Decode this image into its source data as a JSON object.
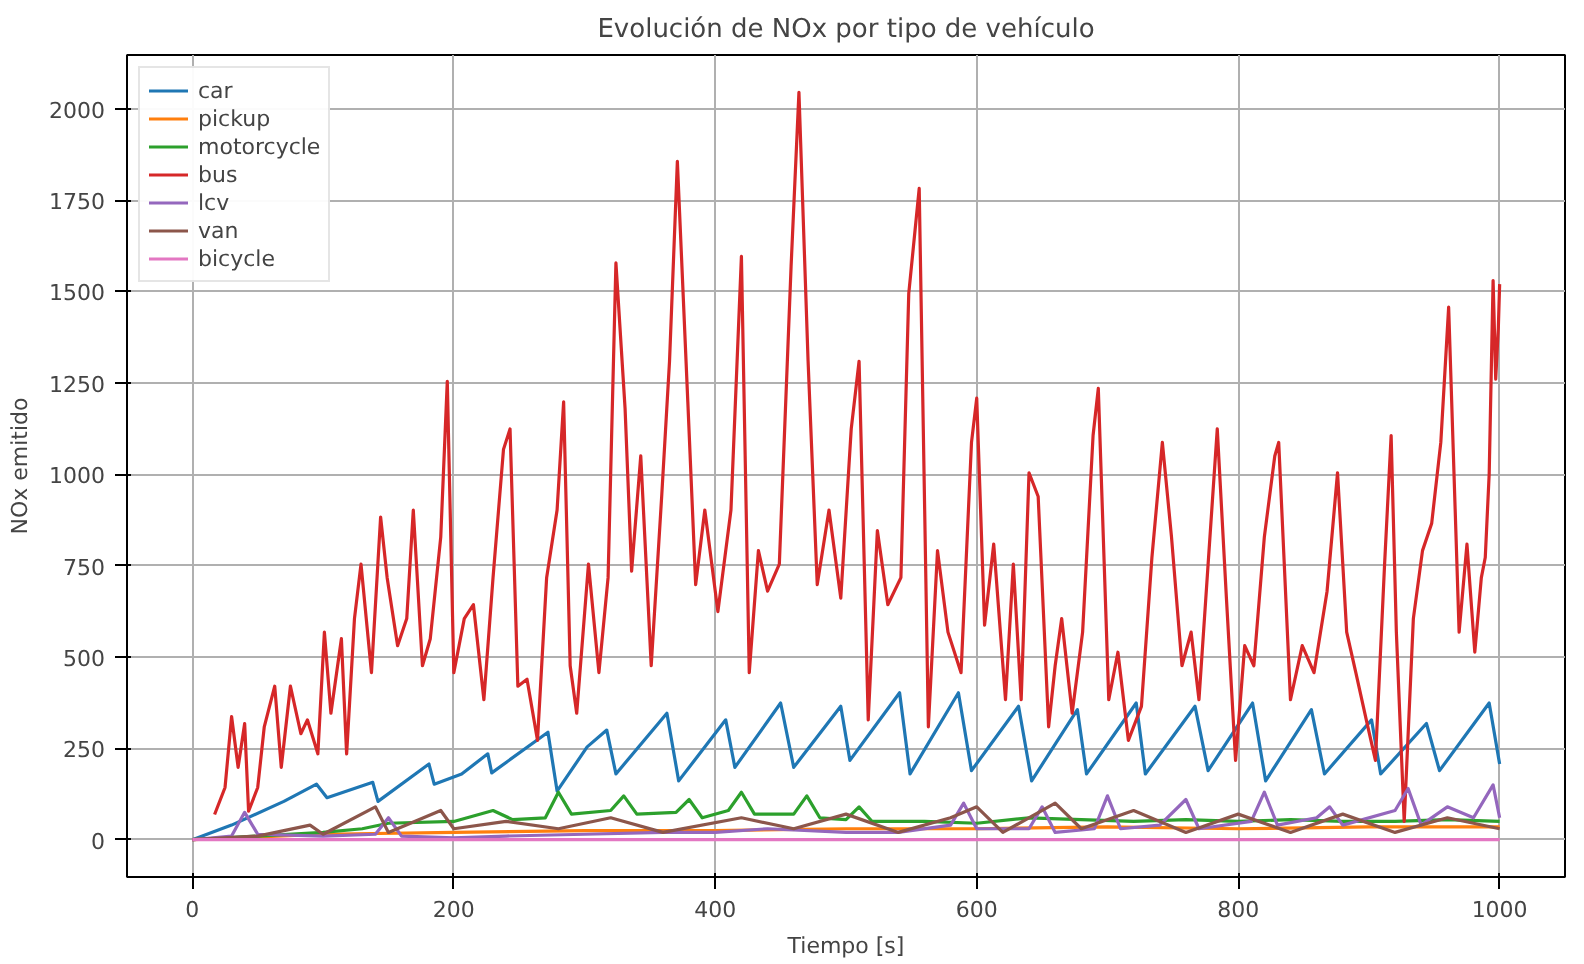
{
  "chart_data": {
    "type": "line",
    "title": "Evolución de NOx por tipo de vehículo",
    "xlabel": "Tiempo [s]",
    "ylabel": "NOx emitido",
    "xlim": [
      -50,
      1050
    ],
    "ylim": [
      -102,
      2147
    ],
    "xticks": [
      0,
      200,
      400,
      600,
      800,
      1000
    ],
    "yticks": [
      0,
      250,
      500,
      750,
      1000,
      1250,
      1500,
      1750,
      2000
    ],
    "grid": true,
    "legend": "top left",
    "line_style": "solid",
    "marker": "none",
    "series": [
      {
        "name": "car",
        "color": "#1f77b4",
        "x": [
          0,
          30,
          70,
          95,
          103,
          138,
          142,
          181,
          185,
          206,
          226,
          229,
          272,
          279,
          302,
          317,
          324,
          363,
          372,
          408,
          415,
          450,
          460,
          496,
          503,
          541,
          549,
          586,
          596,
          632,
          642,
          677,
          684,
          722,
          729,
          767,
          777,
          811,
          821,
          856,
          866,
          902,
          909,
          944,
          954,
          992,
          1000
        ],
        "values": [
          0,
          40,
          105,
          152,
          115,
          157,
          105,
          207,
          152,
          180,
          235,
          183,
          294,
          133,
          254,
          300,
          180,
          346,
          161,
          328,
          198,
          374,
          198,
          365,
          217,
          402,
          180,
          402,
          189,
          365,
          161,
          356,
          180,
          374,
          180,
          365,
          189,
          374,
          161,
          356,
          180,
          328,
          180,
          318,
          189,
          374,
          207
        ]
      },
      {
        "name": "pickup",
        "color": "#ff7f0e",
        "x": [
          0,
          100,
          200,
          300,
          400,
          500,
          600,
          700,
          800,
          900,
          1000
        ],
        "values": [
          0,
          15,
          20,
          25,
          25,
          30,
          30,
          35,
          30,
          35,
          35
        ]
      },
      {
        "name": "motorcycle",
        "color": "#2ca02c",
        "x": [
          0,
          50,
          100,
          130,
          150,
          200,
          230,
          245,
          270,
          280,
          290,
          320,
          330,
          340,
          370,
          380,
          390,
          410,
          420,
          430,
          460,
          470,
          480,
          500,
          510,
          520,
          560,
          600,
          640,
          680,
          720,
          760,
          800,
          840,
          880,
          920,
          960,
          1000
        ],
        "values": [
          0,
          10,
          20,
          30,
          45,
          50,
          80,
          55,
          60,
          130,
          70,
          80,
          120,
          70,
          75,
          110,
          60,
          80,
          130,
          70,
          70,
          120,
          60,
          55,
          90,
          50,
          50,
          45,
          60,
          55,
          50,
          55,
          50,
          55,
          50,
          50,
          55,
          50
        ]
      },
      {
        "name": "bus",
        "color": "#d62728",
        "x": [
          17,
          25,
          30,
          35,
          40,
          43,
          50,
          55,
          63,
          68,
          75,
          83,
          88,
          96,
          101,
          106,
          114,
          118,
          124,
          129,
          137,
          144,
          149,
          157,
          164,
          169,
          176,
          182,
          190,
          195,
          200,
          208,
          215,
          223,
          230,
          238,
          243,
          249,
          256,
          264,
          271,
          279,
          284,
          289,
          294,
          303,
          311,
          318,
          324,
          331,
          336,
          343,
          351,
          359,
          365,
          371,
          379,
          385,
          392,
          402,
          412,
          420,
          426,
          433,
          440,
          449,
          458,
          464,
          471,
          478,
          487,
          496,
          504,
          510,
          517,
          524,
          532,
          542,
          548,
          556,
          563,
          570,
          578,
          588,
          596,
          600,
          606,
          613,
          622,
          628,
          634,
          640,
          647,
          655,
          660,
          665,
          673,
          681,
          689,
          693,
          701,
          708,
          716,
          726,
          734,
          742,
          749,
          757,
          764,
          770,
          777,
          784,
          791,
          798,
          805,
          812,
          820,
          828,
          831,
          840,
          849,
          858,
          868,
          876,
          883,
          890,
          898,
          905,
          912,
          917,
          921,
          927,
          934,
          941,
          948,
          955,
          961,
          969,
          975,
          981,
          986,
          989,
          992,
          995,
          997,
          999,
          1000
        ],
        "values": [
          69,
          143,
          337,
          198,
          318,
          78,
          143,
          309,
          420,
          198,
          420,
          290,
          328,
          235,
          568,
          346,
          550,
          235,
          605,
          754,
          457,
          883,
          717,
          531,
          605,
          902,
          476,
          550,
          828,
          1254,
          457,
          605,
          643,
          383,
          717,
          1068,
          1124,
          420,
          439,
          272,
          717,
          902,
          1198,
          476,
          346,
          754,
          457,
          717,
          1578,
          1180,
          735,
          1050,
          476,
          939,
          1309,
          1856,
          1198,
          698,
          902,
          624,
          902,
          1596,
          457,
          791,
          680,
          754,
          1569,
          2045,
          1309,
          698,
          902,
          661,
          1124,
          1309,
          328,
          846,
          643,
          717,
          1494,
          1782,
          309,
          791,
          568,
          457,
          1087,
          1208,
          587,
          809,
          383,
          754,
          383,
          1004,
          939,
          309,
          476,
          605,
          346,
          568,
          1106,
          1235,
          383,
          513,
          272,
          365,
          772,
          1087,
          828,
          476,
          568,
          383,
          754,
          1124,
          661,
          217,
          531,
          476,
          828,
          1050,
          1087,
          383,
          531,
          457,
          680,
          1004,
          568,
          457,
          328,
          217,
          754,
          1106,
          568,
          50,
          605,
          791,
          865,
          1087,
          1457,
          568,
          809,
          513,
          717,
          772,
          1000,
          1530,
          1260,
          1400,
          1520
        ]
      },
      {
        "name": "lcv",
        "color": "#9467bd",
        "x": [
          0,
          30,
          40,
          50,
          100,
          140,
          150,
          160,
          200,
          240,
          300,
          360,
          400,
          440,
          500,
          540,
          580,
          590,
          600,
          640,
          650,
          660,
          690,
          700,
          710,
          740,
          760,
          770,
          810,
          820,
          830,
          860,
          870,
          880,
          920,
          930,
          940,
          960,
          980,
          995,
          1000
        ],
        "values": [
          0,
          10,
          75,
          15,
          10,
          15,
          60,
          10,
          5,
          10,
          15,
          20,
          20,
          30,
          20,
          20,
          40,
          100,
          30,
          30,
          90,
          20,
          30,
          120,
          30,
          40,
          110,
          30,
          50,
          130,
          40,
          60,
          90,
          40,
          80,
          140,
          40,
          90,
          60,
          150,
          60
        ]
      },
      {
        "name": "van",
        "color": "#8c564b",
        "x": [
          0,
          50,
          90,
          100,
          140,
          150,
          190,
          200,
          240,
          280,
          320,
          360,
          420,
          460,
          500,
          540,
          580,
          600,
          620,
          660,
          680,
          720,
          760,
          800,
          840,
          880,
          920,
          960,
          1000
        ],
        "values": [
          0,
          10,
          40,
          15,
          90,
          20,
          80,
          30,
          50,
          30,
          60,
          20,
          60,
          30,
          70,
          20,
          60,
          90,
          20,
          100,
          30,
          80,
          20,
          70,
          20,
          70,
          20,
          60,
          30
        ]
      },
      {
        "name": "bicycle",
        "color": "#e377c2",
        "x": [
          0,
          1000
        ],
        "values": [
          0,
          0
        ]
      }
    ]
  }
}
